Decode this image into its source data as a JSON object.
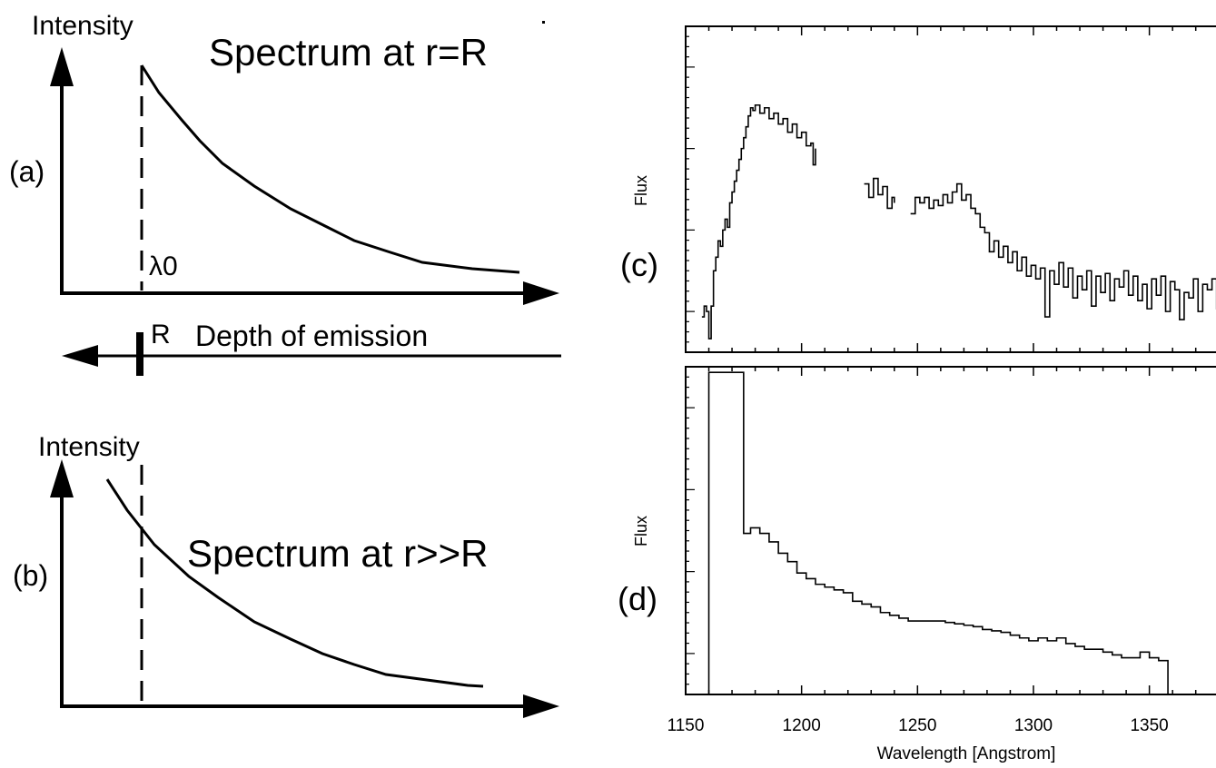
{
  "panel_a": {
    "y_label": "Intensity",
    "title": "Spectrum at r=R",
    "panel_label": "(a)",
    "lambda_label": "λ0",
    "r_label": "R",
    "depth_label": "Depth of emission"
  },
  "panel_b": {
    "y_label": "Intensity",
    "title": "Spectrum at r>>R",
    "panel_label": "(b)"
  },
  "panel_c": {
    "panel_label": "(c)",
    "ylabel": "Flux"
  },
  "panel_d": {
    "panel_label": "(d)",
    "ylabel": "Flux"
  },
  "chart_data": [
    {
      "type": "line",
      "title": "",
      "xlabel": "",
      "ylabel": "Flux",
      "x_range": [
        1150,
        1385
      ],
      "segments": [
        [
          [
            1157,
            0.38
          ],
          [
            1158,
            0.42
          ],
          [
            1159,
            0.4
          ],
          [
            1160,
            0.3
          ],
          [
            1161,
            0.42
          ],
          [
            1162,
            0.55
          ],
          [
            1163,
            0.6
          ],
          [
            1164,
            0.66
          ],
          [
            1165,
            0.64
          ],
          [
            1166,
            0.7
          ],
          [
            1167,
            0.74
          ],
          [
            1168,
            0.71
          ],
          [
            1169,
            0.8
          ],
          [
            1170,
            0.84
          ],
          [
            1171,
            0.88
          ],
          [
            1172,
            0.92
          ],
          [
            1173,
            0.96
          ],
          [
            1174,
            1.0
          ],
          [
            1175,
            1.04
          ],
          [
            1176,
            1.08
          ],
          [
            1177,
            1.12
          ],
          [
            1178,
            1.15
          ],
          [
            1179,
            1.14
          ],
          [
            1180,
            1.16
          ],
          [
            1182,
            1.13
          ],
          [
            1184,
            1.15
          ],
          [
            1186,
            1.11
          ],
          [
            1188,
            1.13
          ],
          [
            1190,
            1.09
          ],
          [
            1192,
            1.11
          ],
          [
            1194,
            1.06
          ],
          [
            1196,
            1.09
          ],
          [
            1198,
            1.04
          ],
          [
            1200,
            1.06
          ],
          [
            1202,
            1.01
          ],
          [
            1204,
            1.02
          ],
          [
            1205,
            0.94
          ],
          [
            1206,
            1.0
          ]
        ],
        [
          [
            1227,
            0.87
          ],
          [
            1229,
            0.82
          ],
          [
            1231,
            0.89
          ],
          [
            1233,
            0.83
          ],
          [
            1235,
            0.86
          ],
          [
            1237,
            0.78
          ],
          [
            1239,
            0.82
          ],
          [
            1240,
            0.8
          ]
        ],
        [
          [
            1247,
            0.76
          ],
          [
            1249,
            0.82
          ],
          [
            1251,
            0.8
          ],
          [
            1253,
            0.82
          ],
          [
            1255,
            0.78
          ],
          [
            1257,
            0.81
          ],
          [
            1259,
            0.79
          ],
          [
            1261,
            0.83
          ],
          [
            1263,
            0.8
          ],
          [
            1265,
            0.84
          ],
          [
            1267,
            0.87
          ],
          [
            1269,
            0.81
          ],
          [
            1271,
            0.83
          ],
          [
            1273,
            0.78
          ],
          [
            1275,
            0.76
          ],
          [
            1277,
            0.71
          ],
          [
            1279,
            0.69
          ],
          [
            1281,
            0.62
          ],
          [
            1283,
            0.66
          ],
          [
            1285,
            0.6
          ],
          [
            1287,
            0.64
          ],
          [
            1289,
            0.58
          ],
          [
            1291,
            0.62
          ],
          [
            1293,
            0.55
          ],
          [
            1295,
            0.6
          ],
          [
            1297,
            0.53
          ],
          [
            1299,
            0.57
          ],
          [
            1301,
            0.52
          ],
          [
            1303,
            0.56
          ],
          [
            1305,
            0.38
          ],
          [
            1307,
            0.55
          ],
          [
            1309,
            0.5
          ],
          [
            1311,
            0.58
          ],
          [
            1313,
            0.49
          ],
          [
            1315,
            0.56
          ],
          [
            1317,
            0.45
          ],
          [
            1319,
            0.53
          ],
          [
            1321,
            0.48
          ],
          [
            1323,
            0.55
          ],
          [
            1325,
            0.42
          ],
          [
            1327,
            0.53
          ],
          [
            1329,
            0.47
          ],
          [
            1331,
            0.54
          ],
          [
            1333,
            0.44
          ],
          [
            1335,
            0.52
          ],
          [
            1337,
            0.49
          ],
          [
            1339,
            0.55
          ],
          [
            1341,
            0.46
          ],
          [
            1343,
            0.53
          ],
          [
            1345,
            0.44
          ],
          [
            1347,
            0.5
          ],
          [
            1349,
            0.41
          ],
          [
            1351,
            0.52
          ],
          [
            1353,
            0.46
          ],
          [
            1355,
            0.53
          ],
          [
            1357,
            0.4
          ],
          [
            1359,
            0.51
          ],
          [
            1361,
            0.48
          ],
          [
            1363,
            0.37
          ],
          [
            1365,
            0.47
          ],
          [
            1367,
            0.45
          ],
          [
            1369,
            0.52
          ],
          [
            1371,
            0.4
          ],
          [
            1373,
            0.5
          ],
          [
            1375,
            0.48
          ],
          [
            1377,
            0.52
          ],
          [
            1379,
            0.41
          ],
          [
            1381,
            0.49
          ],
          [
            1383,
            0.47
          ],
          [
            1385,
            0.48
          ]
        ]
      ]
    },
    {
      "type": "line",
      "title": "",
      "xlabel": "Wavelength [Angstrom]",
      "ylabel": "Flux",
      "x_range": [
        1150,
        1385
      ],
      "xticks": [
        "1150",
        "1200",
        "1250",
        "1300",
        "1350"
      ],
      "x": [
        1160,
        1175,
        1178,
        1182,
        1186,
        1190,
        1194,
        1198,
        1202,
        1206,
        1210,
        1214,
        1218,
        1222,
        1226,
        1230,
        1234,
        1238,
        1242,
        1246,
        1250,
        1254,
        1258,
        1262,
        1266,
        1270,
        1274,
        1278,
        1282,
        1286,
        1290,
        1294,
        1298,
        1302,
        1306,
        1310,
        1314,
        1318,
        1322,
        1326,
        1330,
        1334,
        1338,
        1342,
        1346,
        1350,
        1354,
        1358
      ],
      "values": [
        1.34,
        0.77,
        0.79,
        0.77,
        0.74,
        0.7,
        0.67,
        0.63,
        0.61,
        0.59,
        0.58,
        0.57,
        0.56,
        0.53,
        0.52,
        0.51,
        0.49,
        0.48,
        0.47,
        0.46,
        0.46,
        0.46,
        0.46,
        0.455,
        0.45,
        0.445,
        0.44,
        0.43,
        0.425,
        0.42,
        0.41,
        0.4,
        0.39,
        0.4,
        0.39,
        0.4,
        0.38,
        0.37,
        0.36,
        0.36,
        0.35,
        0.34,
        0.33,
        0.33,
        0.35,
        0.33,
        0.32,
        0.3
      ]
    }
  ]
}
